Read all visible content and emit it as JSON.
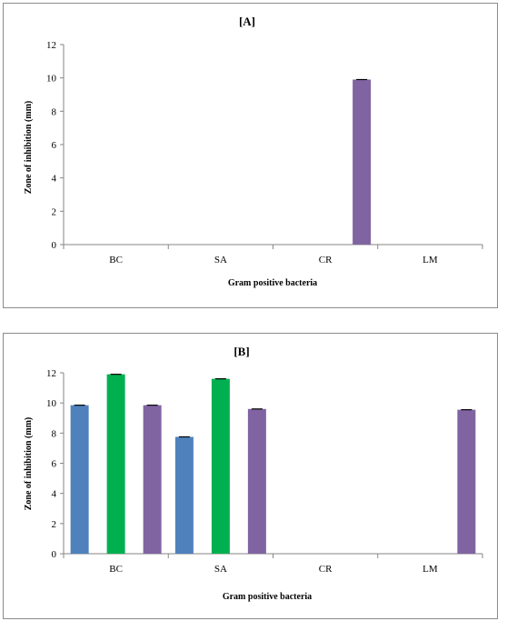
{
  "chart_data": [
    {
      "type": "bar",
      "title": "[A]",
      "xlabel": "Gram positive bacteria",
      "ylabel": "Zone of inhibition (mm)",
      "categories": [
        "BC",
        "SA",
        "CR",
        "LM"
      ],
      "ylim": [
        0,
        12
      ],
      "yticks": [
        0,
        2,
        4,
        6,
        8,
        10,
        12
      ],
      "legend": "none",
      "series": [
        {
          "color": "#4f81bd",
          "values": [
            0,
            0,
            0,
            0
          ]
        },
        {
          "color": "#00b050",
          "values": [
            0,
            0,
            0,
            0
          ]
        },
        {
          "color": "#8064a2",
          "values": [
            0,
            0,
            9.9,
            0
          ]
        }
      ]
    },
    {
      "type": "bar",
      "title": "[B]",
      "xlabel": "Gram positive bacteria",
      "ylabel": "Zone of inhibition (mm)",
      "categories": [
        "BC",
        "SA",
        "CR",
        "LM"
      ],
      "ylim": [
        0,
        12
      ],
      "yticks": [
        0,
        2,
        4,
        6,
        8,
        10,
        12
      ],
      "legend": "none",
      "series": [
        {
          "color": "#4f81bd",
          "values": [
            9.85,
            7.75,
            0,
            0
          ]
        },
        {
          "color": "#00b050",
          "values": [
            11.9,
            11.6,
            0,
            0
          ]
        },
        {
          "color": "#8064a2",
          "values": [
            9.85,
            9.6,
            0,
            9.55
          ]
        }
      ]
    }
  ]
}
